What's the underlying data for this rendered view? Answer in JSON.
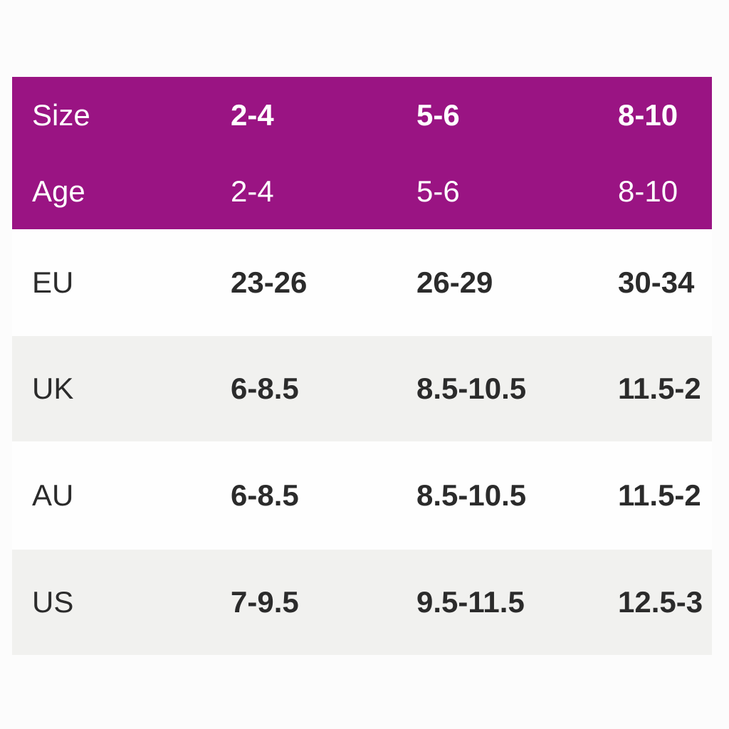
{
  "colors": {
    "header_bg": "#9a1483",
    "header_text": "#ffffff",
    "body_text": "#2b2b2b",
    "row_alt_bg": "#f1f1ef",
    "row_bg": "#fefefe",
    "page_bg": "#fcfcfc"
  },
  "chart_data": {
    "type": "table",
    "columns": [
      "Size",
      "2-4",
      "5-6",
      "8-10"
    ],
    "rows": [
      [
        "Age",
        "2-4",
        "5-6",
        "8-10"
      ],
      [
        "EU",
        "23-26",
        "26-29",
        "30-34"
      ],
      [
        "UK",
        "6-8.5",
        "8.5-10.5",
        "11.5-2"
      ],
      [
        "AU",
        "6-8.5",
        "8.5-10.5",
        "11.5-2"
      ],
      [
        "US",
        "7-9.5",
        "9.5-11.5",
        "12.5-3"
      ]
    ],
    "layout": {
      "header_rows": [
        "Size",
        "Age"
      ],
      "alternating_row_shading": true,
      "value_alignment": "left",
      "bold_cells": "Size header values and all EU/UK/AU/US values"
    }
  }
}
